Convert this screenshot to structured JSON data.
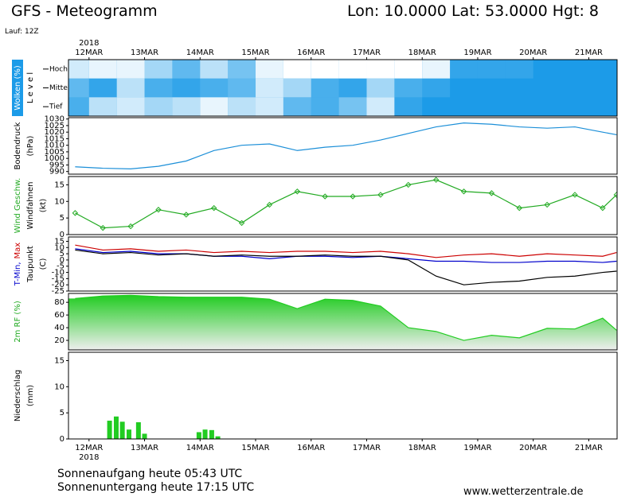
{
  "header": {
    "title": "GFS - Meteogramm",
    "location": "Lon: 10.0000 Lat: 53.0000 Hgt: 8",
    "run": "Lauf: 12Z"
  },
  "xaxis": {
    "year": "2018",
    "xlim": [
      -0.37,
      9.51
    ],
    "xticks": [
      {
        "value": 0,
        "label": "12MAR"
      },
      {
        "value": 1,
        "label": "13MAR"
      },
      {
        "value": 2,
        "label": "14MAR"
      },
      {
        "value": 3,
        "label": "15MAR"
      },
      {
        "value": 4,
        "label": "16MAR"
      },
      {
        "value": 5,
        "label": "17MAR"
      },
      {
        "value": 6,
        "label": "18MAR"
      },
      {
        "value": 7,
        "label": "19MAR"
      },
      {
        "value": 8,
        "label": "20MAR"
      },
      {
        "value": 9,
        "label": "21MAR"
      }
    ]
  },
  "chart_data": [
    {
      "type": "heatmap",
      "background": "#1c9be8",
      "ylabel": [
        {
          "text": "Wolken (%)",
          "color": "#ffffff"
        },
        {
          "text": "L e v e l",
          "color": "#000000"
        }
      ],
      "categories": [
        "Hoch",
        "Mittel",
        "Tief"
      ],
      "x": [
        -0.25,
        0.25,
        0.75,
        1.25,
        1.75,
        2.25,
        2.75,
        3.25,
        3.75,
        4.25,
        4.75,
        5.25,
        5.75,
        6.25,
        6.75,
        7.25,
        7.75,
        8.25,
        8.75,
        9.25,
        9.5
      ],
      "series": [
        {
          "name": "Hoch",
          "color": "#ffffff",
          "values": [
            80,
            90,
            90,
            60,
            30,
            70,
            40,
            90,
            100,
            100,
            100,
            100,
            100,
            90,
            10,
            10,
            10,
            0,
            0,
            0,
            0
          ]
        },
        {
          "name": "Mittel",
          "color": "#ffffff",
          "values": [
            30,
            10,
            70,
            20,
            10,
            20,
            30,
            80,
            60,
            20,
            10,
            60,
            20,
            10,
            0,
            0,
            0,
            0,
            0,
            0,
            0
          ]
        },
        {
          "name": "Tief",
          "color": "#ffffff",
          "values": [
            20,
            70,
            80,
            60,
            70,
            90,
            70,
            80,
            30,
            20,
            40,
            80,
            10,
            0,
            0,
            0,
            0,
            0,
            0,
            0,
            0
          ]
        }
      ]
    },
    {
      "type": "line",
      "ylabel": [
        {
          "text": "Bodendruck",
          "color": "#000000"
        },
        {
          "text": "(hPa)",
          "color": "#000000"
        }
      ],
      "ylim": [
        988,
        1031
      ],
      "yticks": [
        990,
        995,
        1000,
        1005,
        1010,
        1015,
        1020,
        1025,
        1030
      ],
      "x": [
        -0.25,
        0.25,
        0.75,
        1.25,
        1.75,
        2.25,
        2.75,
        3.25,
        3.75,
        4.25,
        4.75,
        5.25,
        5.75,
        6.25,
        6.75,
        7.25,
        7.75,
        8.25,
        8.75,
        9.25,
        9.5
      ],
      "series": [
        {
          "name": "Bodendruck",
          "color": "#1c8fd8",
          "values": [
            993.6,
            992.5,
            992,
            994,
            998,
            1006,
            1010,
            1011,
            1006,
            1008.5,
            1010,
            1014,
            1019,
            1024,
            1027,
            1026,
            1024,
            1023,
            1024,
            1020,
            1018
          ]
        }
      ]
    },
    {
      "type": "line",
      "ylabel": [
        {
          "text": "Wind Geschw.",
          "color": "#22aa22"
        },
        {
          "text": "Windfahnen",
          "color": "#000000"
        },
        {
          "text": "(kt)",
          "color": "#000000"
        }
      ],
      "ylim": [
        0,
        17.5
      ],
      "yticks": [
        0,
        5,
        10,
        15
      ],
      "x": [
        -0.25,
        0.25,
        0.75,
        1.25,
        1.75,
        2.25,
        2.75,
        3.25,
        3.75,
        4.25,
        4.75,
        5.25,
        5.75,
        6.25,
        6.75,
        7.25,
        7.75,
        8.25,
        8.75,
        9.25,
        9.5
      ],
      "series": [
        {
          "name": "Wind Geschw.",
          "color": "#22aa22",
          "markers": true,
          "values": [
            6.5,
            2,
            2.5,
            7.5,
            6,
            8,
            3.5,
            9,
            13,
            11.5,
            11.5,
            12,
            15,
            16.5,
            13,
            12.5,
            8,
            9,
            12,
            8,
            12
          ]
        }
      ]
    },
    {
      "type": "line",
      "ylabel": [
        [
          {
            "text": "T-Min,",
            "color": "#0000cc"
          },
          {
            "text": "Max",
            "color": "#cc0000"
          }
        ],
        {
          "text": "Taupunkt",
          "color": "#000000"
        },
        {
          "text": "(C)",
          "color": "#000000"
        }
      ],
      "ylim": [
        -25,
        18.5
      ],
      "yticks": [
        -25,
        -20,
        -15,
        -10,
        -5,
        0,
        5,
        10,
        15
      ],
      "x": [
        -0.25,
        0.25,
        0.75,
        1.25,
        1.75,
        2.25,
        2.75,
        3.25,
        3.75,
        4.25,
        4.75,
        5.25,
        5.75,
        6.25,
        6.75,
        7.25,
        7.75,
        8.25,
        8.75,
        9.25,
        9.5
      ],
      "series": [
        {
          "name": "Max",
          "color": "#cc0000",
          "values": [
            12,
            8,
            9,
            7,
            8,
            6,
            7,
            6,
            7,
            7,
            6,
            7,
            5,
            2,
            4,
            5,
            3,
            5,
            4,
            3,
            6
          ]
        },
        {
          "name": "T-Min",
          "color": "#0000cc",
          "values": [
            9,
            6,
            7,
            5,
            5,
            3,
            3,
            1,
            3,
            3,
            2,
            3,
            1,
            -1,
            -1,
            -2,
            -2,
            -1,
            -1,
            -2,
            -1
          ]
        },
        {
          "name": "Taupunkt",
          "color": "#000000",
          "values": [
            8,
            5,
            6,
            4,
            5,
            3,
            4,
            3,
            3,
            4,
            3,
            3,
            0,
            -13,
            -20,
            -18,
            -17,
            -14,
            -13,
            -10,
            -9
          ]
        }
      ]
    },
    {
      "type": "area",
      "ylabel": [
        {
          "text": "2m RF (%)",
          "color": "#22aa22"
        }
      ],
      "ylim": [
        5,
        94
      ],
      "yticks": [
        20,
        40,
        60,
        80
      ],
      "x": [
        -0.25,
        0.25,
        0.75,
        1.25,
        1.75,
        2.25,
        2.75,
        3.25,
        3.75,
        4.25,
        4.75,
        5.25,
        5.75,
        6.25,
        6.75,
        7.25,
        7.75,
        8.25,
        8.75,
        9.25,
        9.5
      ],
      "series": [
        {
          "name": "2m RF",
          "color": "#22cc22",
          "values": [
            86,
            90,
            91,
            89,
            88,
            88,
            88,
            85,
            70,
            85,
            83,
            74,
            40,
            34,
            20,
            28,
            24,
            39,
            38,
            55,
            36
          ]
        }
      ]
    },
    {
      "type": "bar",
      "ylabel": [
        {
          "text": "Niederschlag",
          "color": "#000000"
        },
        {
          "text": "(mm)",
          "color": "#000000"
        }
      ],
      "ylim": [
        0,
        16.6
      ],
      "yticks": [
        0,
        5,
        10,
        15
      ],
      "x": [
        0.37,
        0.49,
        0.6,
        0.72,
        0.89,
        1.0,
        1.98,
        2.09,
        2.21,
        2.32
      ],
      "series": [
        {
          "name": "Niederschlag",
          "color": "#22cc22",
          "values": [
            3.5,
            4.3,
            3.3,
            1.8,
            3.2,
            1.0,
            1.3,
            1.8,
            1.7,
            0.5
          ]
        }
      ]
    }
  ],
  "footer": {
    "sunrise": "Sonnenaufgang heute 05:43 UTC",
    "sunset": "Sonnenuntergang heute 17:15 UTC",
    "source": "www.wetterzentrale.de"
  }
}
